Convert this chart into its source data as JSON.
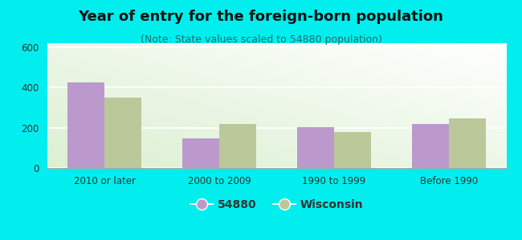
{
  "title": "Year of entry for the foreign-born population",
  "subtitle": "(Note: State values scaled to 54880 population)",
  "categories": [
    "2010 or later",
    "2000 to 2009",
    "1990 to 1999",
    "Before 1990"
  ],
  "values_54880": [
    425,
    148,
    204,
    218
  ],
  "values_wisconsin": [
    350,
    220,
    178,
    248
  ],
  "bar_color_54880": "#bb99cc",
  "bar_color_wisconsin": "#bbc899",
  "ylim": [
    0,
    620
  ],
  "yticks": [
    0,
    200,
    400,
    600
  ],
  "background_outer": "#00eeee",
  "legend_label_1": "54880",
  "legend_label_2": "Wisconsin",
  "bar_width": 0.32,
  "title_fontsize": 13,
  "subtitle_fontsize": 9,
  "tick_fontsize": 8.5,
  "legend_fontsize": 10
}
